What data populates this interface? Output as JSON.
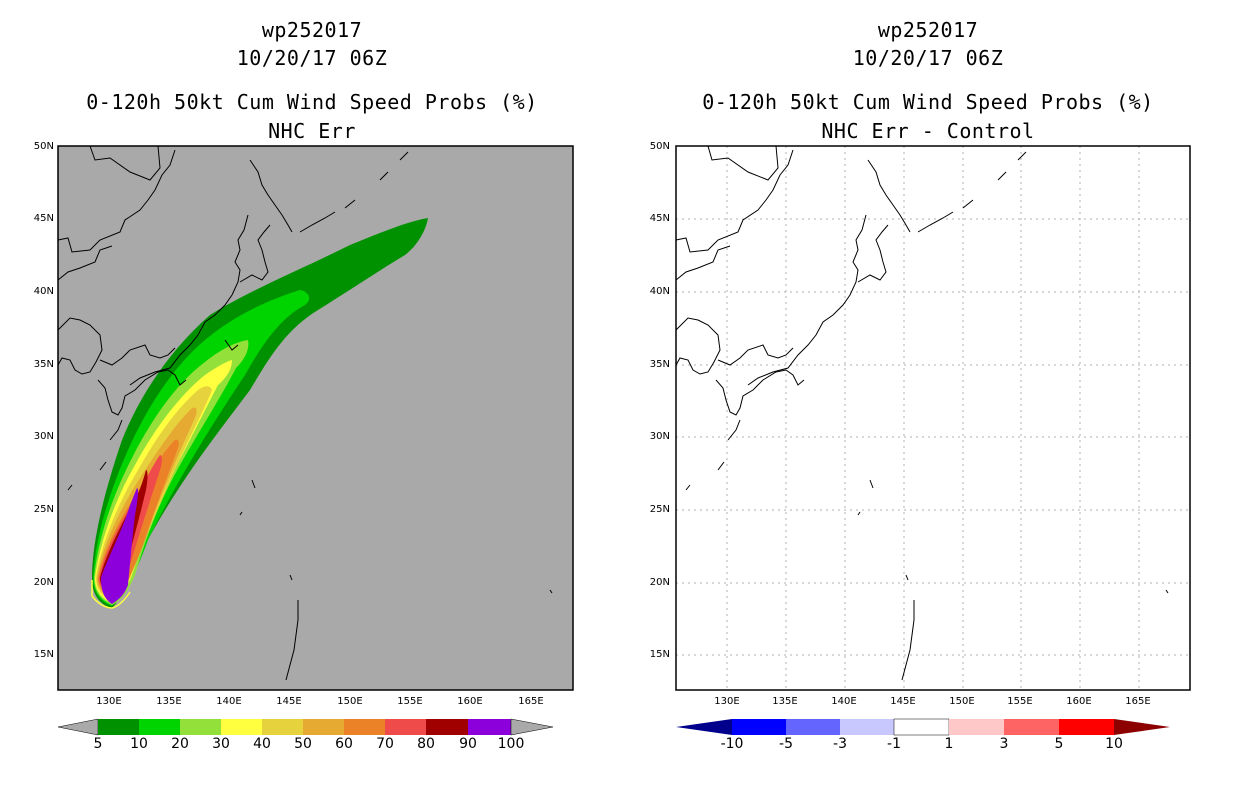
{
  "left_panel": {
    "storm_id": "wp252017",
    "datetime": "10/20/17 06Z",
    "product": "0-120h 50kt Cum Wind Speed Probs (%)",
    "subtitle": "NHC Err",
    "colorbar": {
      "labels": [
        "5",
        "10",
        "20",
        "30",
        "40",
        "50",
        "60",
        "70",
        "80",
        "90",
        "100"
      ],
      "colors": [
        "#009100",
        "#00d400",
        "#94e03a",
        "#ffff40",
        "#e6d23c",
        "#e6aa32",
        "#eb8228",
        "#f04b4b",
        "#a00000",
        "#8c00dc"
      ]
    }
  },
  "right_panel": {
    "storm_id": "wp252017",
    "datetime": "10/20/17 06Z",
    "product": "0-120h 50kt Cum Wind Speed Probs (%)",
    "subtitle": "NHC Err - Control",
    "colorbar": {
      "labels": [
        "-10",
        "-5",
        "-3",
        "-1",
        "1",
        "3",
        "5",
        "10"
      ],
      "colors": [
        "#00008c",
        "#0000ff",
        "#6464ff",
        "#c8c8ff",
        "#ffffff",
        "#ffc8c8",
        "#ff6464",
        "#ff0000",
        "#8c0000"
      ]
    }
  },
  "axes": {
    "lat_labels": [
      "50N",
      "45N",
      "40N",
      "35N",
      "30N",
      "25N",
      "20N",
      "15N"
    ],
    "lon_labels": [
      "130E",
      "135E",
      "140E",
      "145E",
      "150E",
      "155E",
      "160E",
      "165E"
    ]
  },
  "colors": {
    "background_gray": "#a9a9a9",
    "outer_arrow_gray": "#a9a9a9"
  }
}
